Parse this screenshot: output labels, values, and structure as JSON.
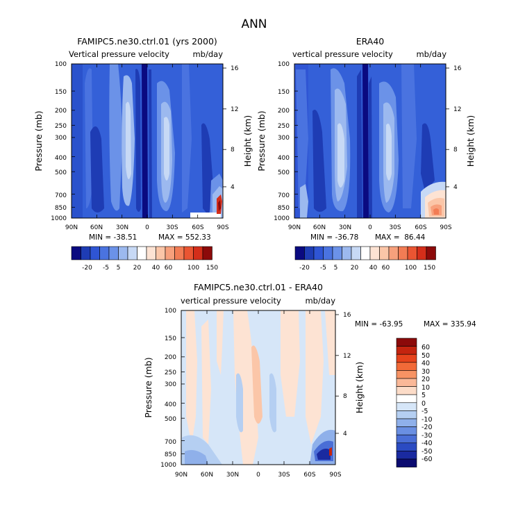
{
  "page_title": "ANN",
  "chart_data": [
    {
      "type": "heatmap",
      "id": "model",
      "title": "FAMIPC5.ne30.ctrl.01 (yrs 2000)",
      "subtitle_left": "Vertical pressure velocity",
      "subtitle_right": "mb/day",
      "ylabel": "Pressure (mb)",
      "ylabel_right": "Height (km)",
      "x_ticks": [
        "90N",
        "60N",
        "30N",
        "0",
        "30S",
        "60S",
        "90S"
      ],
      "y_ticks": [
        "100",
        "150",
        "200",
        "250",
        "300",
        "400",
        "500",
        "700",
        "850",
        "1000"
      ],
      "y_ticks_right": [
        "16",
        "12",
        "8",
        "4"
      ],
      "stats": {
        "min": "MIN = -38.51",
        "max": "MAX = 552.33"
      },
      "colorbar_labels": [
        "-20",
        "-5",
        "5",
        "20",
        "40",
        "60",
        "100",
        "150"
      ]
    },
    {
      "type": "heatmap",
      "id": "obs",
      "title": "ERA40",
      "subtitle_left": "vertical pressure velocity",
      "subtitle_right": "mb/day",
      "ylabel": "Pressure (mb)",
      "ylabel_right": "Height (km)",
      "x_ticks": [
        "90N",
        "60N",
        "30N",
        "0",
        "30S",
        "60S",
        "90S"
      ],
      "y_ticks": [
        "100",
        "150",
        "200",
        "250",
        "300",
        "400",
        "500",
        "700",
        "850",
        "1000"
      ],
      "y_ticks_right": [
        "16",
        "12",
        "8",
        "4"
      ],
      "stats": {
        "min": "MIN = -36.78",
        "max": "MAX =  86.44"
      },
      "colorbar_labels": [
        "-20",
        "-5",
        "5",
        "20",
        "40",
        "60",
        "100",
        "150"
      ]
    },
    {
      "type": "heatmap",
      "id": "diff",
      "title": "FAMIPC5.ne30.ctrl.01 - ERA40",
      "subtitle_left": "vertical pressure velocity",
      "subtitle_right": "mb/day",
      "ylabel": "Pressure (mb)",
      "ylabel_right": "Height (km)",
      "x_ticks": [
        "90N",
        "60N",
        "30N",
        "0",
        "30S",
        "60S",
        "90S"
      ],
      "y_ticks": [
        "100",
        "150",
        "200",
        "250",
        "300",
        "400",
        "500",
        "700",
        "850",
        "1000"
      ],
      "y_ticks_right": [
        "16",
        "12",
        "8",
        "4"
      ],
      "stats": {
        "min": "MIN = -63.95",
        "max": "MAX = 335.94"
      },
      "colorbar_labels": [
        "60",
        "50",
        "40",
        "30",
        "20",
        "10",
        "5",
        "0",
        "-5",
        "-10",
        "-20",
        "-30",
        "-40",
        "-50",
        "-60"
      ]
    }
  ],
  "colors": {
    "main_scale": [
      "#0a0a80",
      "#1e3cb4",
      "#2f55d4",
      "#4a73e0",
      "#6b92e8",
      "#9cb9ef",
      "#c7d9f5",
      "#ffffff",
      "#fde3d3",
      "#fbc6a8",
      "#f7a07c",
      "#f27c54",
      "#ea5532",
      "#d42e1a",
      "#8c0a0a"
    ],
    "diff_scale": [
      "#8c0a0a",
      "#c4240f",
      "#e6431c",
      "#f26a38",
      "#f79364",
      "#fab898",
      "#fcdcc8",
      "#ffffff",
      "#d6e6f8",
      "#b5cff2",
      "#8fb0ea",
      "#6a8fe2",
      "#4a6ed6",
      "#2b4bc2",
      "#1a2aa0",
      "#0b0b70"
    ]
  }
}
